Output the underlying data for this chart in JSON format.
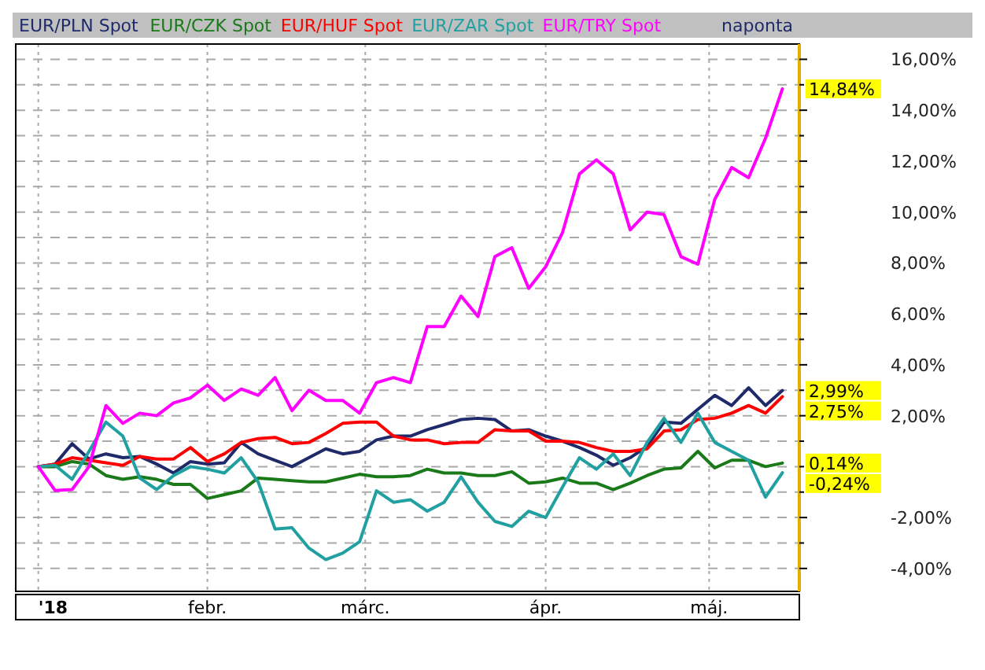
{
  "chart_data": {
    "type": "line",
    "x": [
      "2018-01-02",
      "2018-01-05",
      "2018-01-08",
      "2018-01-11",
      "2018-01-14",
      "2018-01-17",
      "2018-01-20",
      "2018-01-23",
      "2018-01-26",
      "2018-01-29",
      "2018-02-01",
      "2018-02-04",
      "2018-02-07",
      "2018-02-10",
      "2018-02-13",
      "2018-02-16",
      "2018-02-19",
      "2018-02-22",
      "2018-02-25",
      "2018-02-28",
      "2018-03-03",
      "2018-03-06",
      "2018-03-09",
      "2018-03-12",
      "2018-03-15",
      "2018-03-18",
      "2018-03-21",
      "2018-03-24",
      "2018-03-27",
      "2018-03-30",
      "2018-04-02",
      "2018-04-05",
      "2018-04-08",
      "2018-04-11",
      "2018-04-14",
      "2018-04-17",
      "2018-04-20",
      "2018-04-23",
      "2018-04-26",
      "2018-04-29",
      "2018-05-02",
      "2018-05-05",
      "2018-05-08",
      "2018-05-11",
      "2018-05-14"
    ],
    "series": [
      {
        "name": "EUR/PLN Spot",
        "color": "#1f2a6b",
        "values": [
          0,
          0.1,
          0.9,
          0.3,
          0.5,
          0.35,
          0.4,
          0.1,
          -0.25,
          0.2,
          0.1,
          0.15,
          0.95,
          0.5,
          0.25,
          0,
          0.35,
          0.7,
          0.5,
          0.6,
          1.05,
          1.2,
          1.2,
          1.45,
          1.65,
          1.85,
          1.9,
          1.85,
          1.4,
          1.45,
          1.2,
          1.0,
          0.75,
          0.45,
          0.05,
          0.35,
          0.8,
          1.75,
          1.7,
          2.25,
          2.8,
          2.4,
          3.1,
          2.4,
          2.99
        ],
        "value_labels": [
          null,
          null,
          null,
          null,
          null,
          null,
          null,
          null,
          null,
          null,
          null,
          null,
          null,
          null,
          null,
          null,
          null,
          null,
          null,
          null,
          null,
          null,
          null,
          null,
          null,
          null,
          null,
          null,
          null,
          null,
          null,
          null,
          null,
          null,
          null,
          null,
          null,
          null,
          null,
          null,
          null,
          null,
          null,
          null,
          "2,99%"
        ]
      },
      {
        "name": "EUR/CZK Spot",
        "color": "#1a7a1a",
        "values": [
          0,
          0,
          0.2,
          0.1,
          -0.35,
          -0.5,
          -0.4,
          -0.5,
          -0.7,
          -0.7,
          -1.25,
          -1.1,
          -0.95,
          -0.45,
          -0.5,
          -0.55,
          -0.6,
          -0.6,
          -0.45,
          -0.3,
          -0.4,
          -0.4,
          -0.35,
          -0.1,
          -0.25,
          -0.25,
          -0.35,
          -0.35,
          -0.2,
          -0.65,
          -0.6,
          -0.45,
          -0.65,
          -0.65,
          -0.9,
          -0.65,
          -0.35,
          -0.1,
          -0.05,
          0.6,
          -0.05,
          0.25,
          0.25,
          0,
          0.14
        ],
        "value_labels": [
          null,
          null,
          null,
          null,
          null,
          null,
          null,
          null,
          null,
          null,
          null,
          null,
          null,
          null,
          null,
          null,
          null,
          null,
          null,
          null,
          null,
          null,
          null,
          null,
          null,
          null,
          null,
          null,
          null,
          null,
          null,
          null,
          null,
          null,
          null,
          null,
          null,
          null,
          null,
          null,
          null,
          null,
          null,
          null,
          "0,14%"
        ]
      },
      {
        "name": "EUR/HUF Spot",
        "color": "#ff0000",
        "values": [
          0,
          0.1,
          0.35,
          0.25,
          0.15,
          0.05,
          0.4,
          0.3,
          0.3,
          0.75,
          0.2,
          0.5,
          0.95,
          1.1,
          1.15,
          0.9,
          0.95,
          1.3,
          1.7,
          1.75,
          1.75,
          1.2,
          1.05,
          1.05,
          0.9,
          0.95,
          0.95,
          1.45,
          1.4,
          1.4,
          1.0,
          1.0,
          0.95,
          0.75,
          0.6,
          0.6,
          0.7,
          1.4,
          1.45,
          1.85,
          1.9,
          2.1,
          2.4,
          2.1,
          2.75
        ],
        "value_labels": [
          null,
          null,
          null,
          null,
          null,
          null,
          null,
          null,
          null,
          null,
          null,
          null,
          null,
          null,
          null,
          null,
          null,
          null,
          null,
          null,
          null,
          null,
          null,
          null,
          null,
          null,
          null,
          null,
          null,
          null,
          null,
          null,
          null,
          null,
          null,
          null,
          null,
          null,
          null,
          null,
          null,
          null,
          null,
          null,
          "2,75%"
        ]
      },
      {
        "name": "EUR/ZAR Spot",
        "color": "#20a0a0",
        "values": [
          0,
          0.05,
          -0.5,
          0.6,
          1.75,
          1.2,
          -0.45,
          -0.9,
          -0.35,
          0,
          -0.1,
          -0.25,
          0.35,
          -0.6,
          -2.45,
          -2.4,
          -3.2,
          -3.65,
          -3.4,
          -2.95,
          -0.95,
          -1.4,
          -1.3,
          -1.75,
          -1.4,
          -0.4,
          -1.4,
          -2.15,
          -2.35,
          -1.75,
          -2.0,
          -0.8,
          0.35,
          -0.1,
          0.5,
          -0.35,
          0.95,
          1.9,
          0.95,
          2.1,
          0.95,
          0.6,
          0.25,
          -1.2,
          -0.24
        ],
        "value_labels": [
          null,
          null,
          null,
          null,
          null,
          null,
          null,
          null,
          null,
          null,
          null,
          null,
          null,
          null,
          null,
          null,
          null,
          null,
          null,
          null,
          null,
          null,
          null,
          null,
          null,
          null,
          null,
          null,
          null,
          null,
          null,
          null,
          null,
          null,
          null,
          null,
          null,
          null,
          null,
          null,
          null,
          null,
          null,
          null,
          "-0,24%"
        ]
      },
      {
        "name": "EUR/TRY Spot",
        "color": "#ff00ff",
        "values": [
          0,
          -0.94,
          -0.9,
          0,
          2.4,
          1.7,
          2.1,
          2.0,
          2.5,
          2.7,
          3.2,
          2.6,
          3.05,
          2.8,
          3.5,
          2.2,
          3.0,
          2.6,
          2.6,
          2.1,
          3.3,
          3.5,
          3.3,
          5.5,
          5.5,
          6.7,
          5.9,
          8.25,
          8.6,
          7.0,
          7.85,
          9.2,
          11.5,
          12.05,
          11.5,
          9.3,
          10.0,
          9.9,
          8.25,
          7.95,
          10.5,
          11.75,
          11.35,
          12.9,
          14.84
        ],
        "value_labels": [
          null,
          null,
          null,
          null,
          null,
          null,
          null,
          null,
          null,
          null,
          null,
          null,
          null,
          null,
          null,
          null,
          null,
          null,
          null,
          null,
          null,
          null,
          null,
          null,
          null,
          null,
          null,
          null,
          null,
          null,
          null,
          null,
          null,
          null,
          null,
          null,
          null,
          null,
          null,
          null,
          null,
          null,
          null,
          null,
          "14,84%"
        ]
      }
    ],
    "xlim": [
      "2017-12-29",
      "2018-05-17"
    ],
    "xticks": [
      {
        "value": "2018-01-02",
        "label": "'18"
      },
      {
        "value": "2018-02-01",
        "label": "febr."
      },
      {
        "value": "2018-03-01",
        "label": "márc."
      },
      {
        "value": "2018-04-02",
        "label": "ápr."
      },
      {
        "value": "2018-05-01",
        "label": "máj."
      }
    ],
    "ylim": [
      -4.9,
      16.6
    ],
    "yticks": [
      {
        "value": -4,
        "label": "-4,00%"
      },
      {
        "value": -3,
        "label": null
      },
      {
        "value": -2,
        "label": "-2,00%"
      },
      {
        "value": -1,
        "label": null
      },
      {
        "value": 0,
        "label": null
      },
      {
        "value": 1,
        "label": null
      },
      {
        "value": 2,
        "label": "2,00%"
      },
      {
        "value": 3,
        "label": null
      },
      {
        "value": 4,
        "label": "4,00%"
      },
      {
        "value": 5,
        "label": null
      },
      {
        "value": 6,
        "label": "6,00%"
      },
      {
        "value": 7,
        "label": null
      },
      {
        "value": 8,
        "label": "8,00%"
      },
      {
        "value": 9,
        "label": null
      },
      {
        "value": 10,
        "label": "10,00%"
      },
      {
        "value": 11,
        "label": null
      },
      {
        "value": 12,
        "label": "12,00%"
      },
      {
        "value": 13,
        "label": null
      },
      {
        "value": 14,
        "label": "14,00%"
      },
      {
        "value": 15,
        "label": null
      },
      {
        "value": 16,
        "label": "16,00%"
      }
    ],
    "grid": true,
    "legend": "top",
    "annotations": [
      "naponta"
    ]
  }
}
